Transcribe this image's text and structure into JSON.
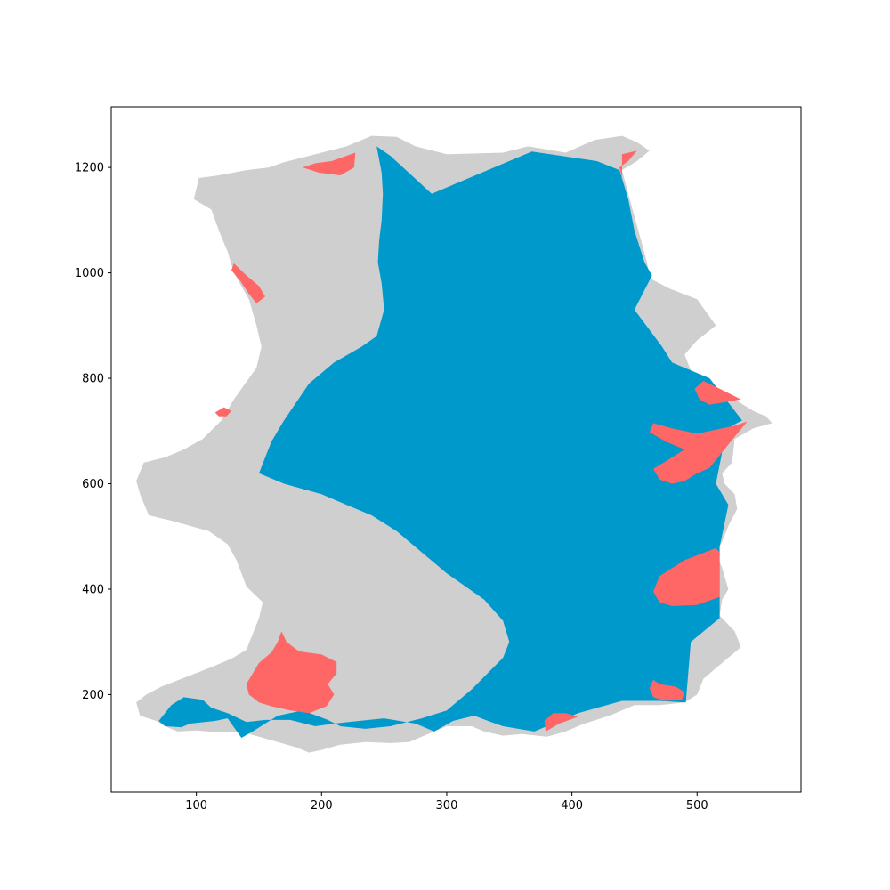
{
  "colors": {
    "background": "#ffffff",
    "region_gray": "#cfcfcf",
    "region_blue": "#0099cc",
    "region_red": "#ff6666",
    "axes": "#000000"
  },
  "chart_data": {
    "type": "area",
    "title": "",
    "xlabel": "",
    "ylabel": "",
    "xlim": [
      32,
      583
    ],
    "ylim": [
      15,
      1315
    ],
    "xticks": [
      100,
      200,
      300,
      400,
      500
    ],
    "yticks": [
      200,
      400,
      600,
      800,
      1000,
      1200
    ],
    "grid": false,
    "legend": "none",
    "series": [
      {
        "color": "#cfcfcf",
        "polygon": [
          [
            240,
            1260
          ],
          [
            260,
            1258
          ],
          [
            275,
            1240
          ],
          [
            300,
            1225
          ],
          [
            345,
            1228
          ],
          [
            365,
            1240
          ],
          [
            395,
            1228
          ],
          [
            418,
            1252
          ],
          [
            440,
            1260
          ],
          [
            452,
            1248
          ],
          [
            462,
            1232
          ],
          [
            452,
            1212
          ],
          [
            440,
            1195
          ],
          [
            445,
            1150
          ],
          [
            452,
            1090
          ],
          [
            460,
            1020
          ],
          [
            462,
            990
          ],
          [
            478,
            970
          ],
          [
            500,
            950
          ],
          [
            515,
            900
          ],
          [
            500,
            872
          ],
          [
            490,
            845
          ],
          [
            495,
            815
          ],
          [
            512,
            790
          ],
          [
            530,
            760
          ],
          [
            545,
            738
          ],
          [
            555,
            728
          ],
          [
            560,
            715
          ],
          [
            545,
            705
          ],
          [
            530,
            685
          ],
          [
            528,
            640
          ],
          [
            520,
            620
          ],
          [
            522,
            600
          ],
          [
            530,
            580
          ],
          [
            532,
            552
          ],
          [
            525,
            520
          ],
          [
            520,
            490
          ],
          [
            515,
            470
          ],
          [
            520,
            440
          ],
          [
            525,
            400
          ],
          [
            520,
            380
          ],
          [
            518,
            350
          ],
          [
            530,
            320
          ],
          [
            535,
            290
          ],
          [
            525,
            270
          ],
          [
            515,
            250
          ],
          [
            505,
            230
          ],
          [
            500,
            200
          ],
          [
            490,
            185
          ],
          [
            470,
            180
          ],
          [
            450,
            180
          ],
          [
            430,
            160
          ],
          [
            410,
            145
          ],
          [
            395,
            130
          ],
          [
            380,
            120
          ],
          [
            360,
            125
          ],
          [
            345,
            122
          ],
          [
            330,
            130
          ],
          [
            320,
            140
          ],
          [
            300,
            140
          ],
          [
            290,
            130
          ],
          [
            280,
            120
          ],
          [
            270,
            110
          ],
          [
            255,
            108
          ],
          [
            235,
            110
          ],
          [
            215,
            105
          ],
          [
            200,
            95
          ],
          [
            190,
            90
          ],
          [
            180,
            100
          ],
          [
            165,
            110
          ],
          [
            150,
            120
          ],
          [
            135,
            130
          ],
          [
            120,
            128
          ],
          [
            100,
            132
          ],
          [
            85,
            130
          ],
          [
            75,
            140
          ],
          [
            68,
            150
          ],
          [
            55,
            160
          ],
          [
            52,
            185
          ],
          [
            60,
            200
          ],
          [
            72,
            215
          ],
          [
            88,
            230
          ],
          [
            110,
            250
          ],
          [
            128,
            268
          ],
          [
            140,
            285
          ],
          [
            145,
            315
          ],
          [
            150,
            345
          ],
          [
            153,
            375
          ],
          [
            140,
            405
          ],
          [
            132,
            455
          ],
          [
            125,
            485
          ],
          [
            110,
            510
          ],
          [
            80,
            530
          ],
          [
            62,
            540
          ],
          [
            55,
            580
          ],
          [
            52,
            605
          ],
          [
            58,
            640
          ],
          [
            75,
            650
          ],
          [
            90,
            665
          ],
          [
            105,
            685
          ],
          [
            120,
            720
          ],
          [
            130,
            760
          ],
          [
            148,
            820
          ],
          [
            152,
            860
          ],
          [
            148,
            900
          ],
          [
            142,
            950
          ],
          [
            130,
            1000
          ],
          [
            125,
            1040
          ],
          [
            118,
            1080
          ],
          [
            112,
            1120
          ],
          [
            98,
            1140
          ],
          [
            102,
            1180
          ],
          [
            118,
            1185
          ],
          [
            140,
            1195
          ],
          [
            158,
            1200
          ],
          [
            170,
            1210
          ],
          [
            200,
            1228
          ],
          [
            220,
            1240
          ],
          [
            230,
            1250
          ]
        ]
      },
      {
        "color": "#0099cc",
        "polygon": [
          [
            244,
            1240
          ],
          [
            255,
            1222
          ],
          [
            288,
            1150
          ],
          [
            368,
            1230
          ],
          [
            420,
            1212
          ],
          [
            438,
            1195
          ],
          [
            445,
            1140
          ],
          [
            450,
            1080
          ],
          [
            458,
            1020
          ],
          [
            464,
            995
          ],
          [
            450,
            930
          ],
          [
            472,
            860
          ],
          [
            480,
            830
          ],
          [
            510,
            800
          ],
          [
            536,
            720
          ],
          [
            528,
            710
          ],
          [
            520,
            660
          ],
          [
            515,
            600
          ],
          [
            525,
            560
          ],
          [
            518,
            480
          ],
          [
            518,
            345
          ],
          [
            495,
            300
          ],
          [
            491,
            185
          ],
          [
            470,
            188
          ],
          [
            440,
            188
          ],
          [
            405,
            165
          ],
          [
            370,
            130
          ],
          [
            345,
            140
          ],
          [
            333,
            150
          ],
          [
            322,
            160
          ],
          [
            305,
            150
          ],
          [
            290,
            130
          ],
          [
            275,
            145
          ],
          [
            250,
            155
          ],
          [
            230,
            150
          ],
          [
            210,
            145
          ],
          [
            195,
            140
          ],
          [
            175,
            152
          ],
          [
            155,
            152
          ],
          [
            140,
            148
          ],
          [
            125,
            165
          ],
          [
            112,
            175
          ],
          [
            105,
            190
          ],
          [
            90,
            195
          ],
          [
            80,
            180
          ],
          [
            70,
            150
          ],
          [
            75,
            140
          ],
          [
            88,
            138
          ],
          [
            95,
            145
          ],
          [
            115,
            150
          ],
          [
            125,
            155
          ],
          [
            136,
            118
          ],
          [
            145,
            130
          ],
          [
            165,
            160
          ],
          [
            185,
            170
          ],
          [
            205,
            152
          ],
          [
            215,
            140
          ],
          [
            235,
            135
          ],
          [
            255,
            140
          ],
          [
            280,
            155
          ],
          [
            300,
            170
          ],
          [
            320,
            210
          ],
          [
            345,
            270
          ],
          [
            350,
            300
          ],
          [
            345,
            340
          ],
          [
            330,
            380
          ],
          [
            300,
            430
          ],
          [
            280,
            470
          ],
          [
            260,
            510
          ],
          [
            240,
            540
          ],
          [
            220,
            560
          ],
          [
            200,
            580
          ],
          [
            170,
            600
          ],
          [
            150,
            620
          ],
          [
            160,
            680
          ],
          [
            170,
            720
          ],
          [
            190,
            790
          ],
          [
            210,
            830
          ],
          [
            232,
            860
          ],
          [
            244,
            880
          ],
          [
            250,
            930
          ],
          [
            248,
            980
          ],
          [
            245,
            1020
          ],
          [
            246,
            1060
          ],
          [
            248,
            1100
          ],
          [
            249,
            1150
          ],
          [
            248,
            1190
          ]
        ]
      },
      {
        "color": "#ff6666",
        "polygon": [
          [
            185,
            1200
          ],
          [
            198,
            1190
          ],
          [
            215,
            1185
          ],
          [
            226,
            1200
          ],
          [
            227,
            1228
          ],
          [
            208,
            1212
          ],
          [
            195,
            1208
          ]
        ]
      },
      {
        "color": "#ff6666",
        "polygon": [
          [
            130,
            1018
          ],
          [
            140,
            995
          ],
          [
            150,
            975
          ],
          [
            155,
            955
          ],
          [
            148,
            942
          ],
          [
            142,
            960
          ],
          [
            135,
            985
          ],
          [
            128,
            1005
          ]
        ]
      },
      {
        "color": "#ff6666",
        "polygon": [
          [
            115,
            735
          ],
          [
            122,
            745
          ],
          [
            128,
            738
          ],
          [
            124,
            728
          ],
          [
            118,
            728
          ]
        ]
      },
      {
        "color": "#ff6666",
        "polygon": [
          [
            505,
            795
          ],
          [
            520,
            778
          ],
          [
            535,
            760
          ],
          [
            510,
            750
          ],
          [
            502,
            760
          ],
          [
            498,
            780
          ]
        ]
      },
      {
        "color": "#ff6666",
        "polygon": [
          [
            465,
            715
          ],
          [
            480,
            705
          ],
          [
            500,
            695
          ],
          [
            530,
            710
          ],
          [
            540,
            718
          ],
          [
            520,
            660
          ],
          [
            510,
            630
          ],
          [
            500,
            620
          ],
          [
            490,
            605
          ],
          [
            480,
            600
          ],
          [
            470,
            608
          ],
          [
            465,
            628
          ],
          [
            480,
            650
          ],
          [
            490,
            665
          ],
          [
            475,
            680
          ],
          [
            462,
            698
          ]
        ]
      },
      {
        "color": "#ff6666",
        "polygon": [
          [
            470,
            425
          ],
          [
            490,
            455
          ],
          [
            515,
            478
          ],
          [
            518,
            470
          ],
          [
            518,
            385
          ],
          [
            500,
            370
          ],
          [
            480,
            368
          ],
          [
            470,
            375
          ],
          [
            465,
            395
          ]
        ]
      },
      {
        "color": "#ff6666",
        "polygon": [
          [
            168,
            320
          ],
          [
            172,
            300
          ],
          [
            182,
            282
          ],
          [
            200,
            276
          ],
          [
            212,
            262
          ],
          [
            212,
            240
          ],
          [
            205,
            220
          ],
          [
            210,
            200
          ],
          [
            204,
            178
          ],
          [
            190,
            165
          ],
          [
            175,
            170
          ],
          [
            160,
            178
          ],
          [
            150,
            185
          ],
          [
            142,
            200
          ],
          [
            140,
            220
          ],
          [
            145,
            240
          ],
          [
            150,
            260
          ],
          [
            160,
            280
          ],
          [
            165,
            300
          ]
        ]
      },
      {
        "color": "#ff6666",
        "polygon": [
          [
            465,
            228
          ],
          [
            470,
            220
          ],
          [
            483,
            215
          ],
          [
            490,
            205
          ],
          [
            488,
            190
          ],
          [
            475,
            188
          ],
          [
            465,
            195
          ],
          [
            462,
            212
          ]
        ]
      },
      {
        "color": "#ff6666",
        "polygon": [
          [
            440,
            1225
          ],
          [
            452,
            1232
          ],
          [
            445,
            1212
          ],
          [
            438,
            1200
          ],
          [
            440,
            1180
          ]
        ]
      },
      {
        "color": "#ff6666",
        "polygon": [
          [
            379,
            130
          ],
          [
            390,
            145
          ],
          [
            405,
            158
          ],
          [
            395,
            165
          ],
          [
            385,
            165
          ],
          [
            378,
            150
          ]
        ]
      }
    ]
  }
}
